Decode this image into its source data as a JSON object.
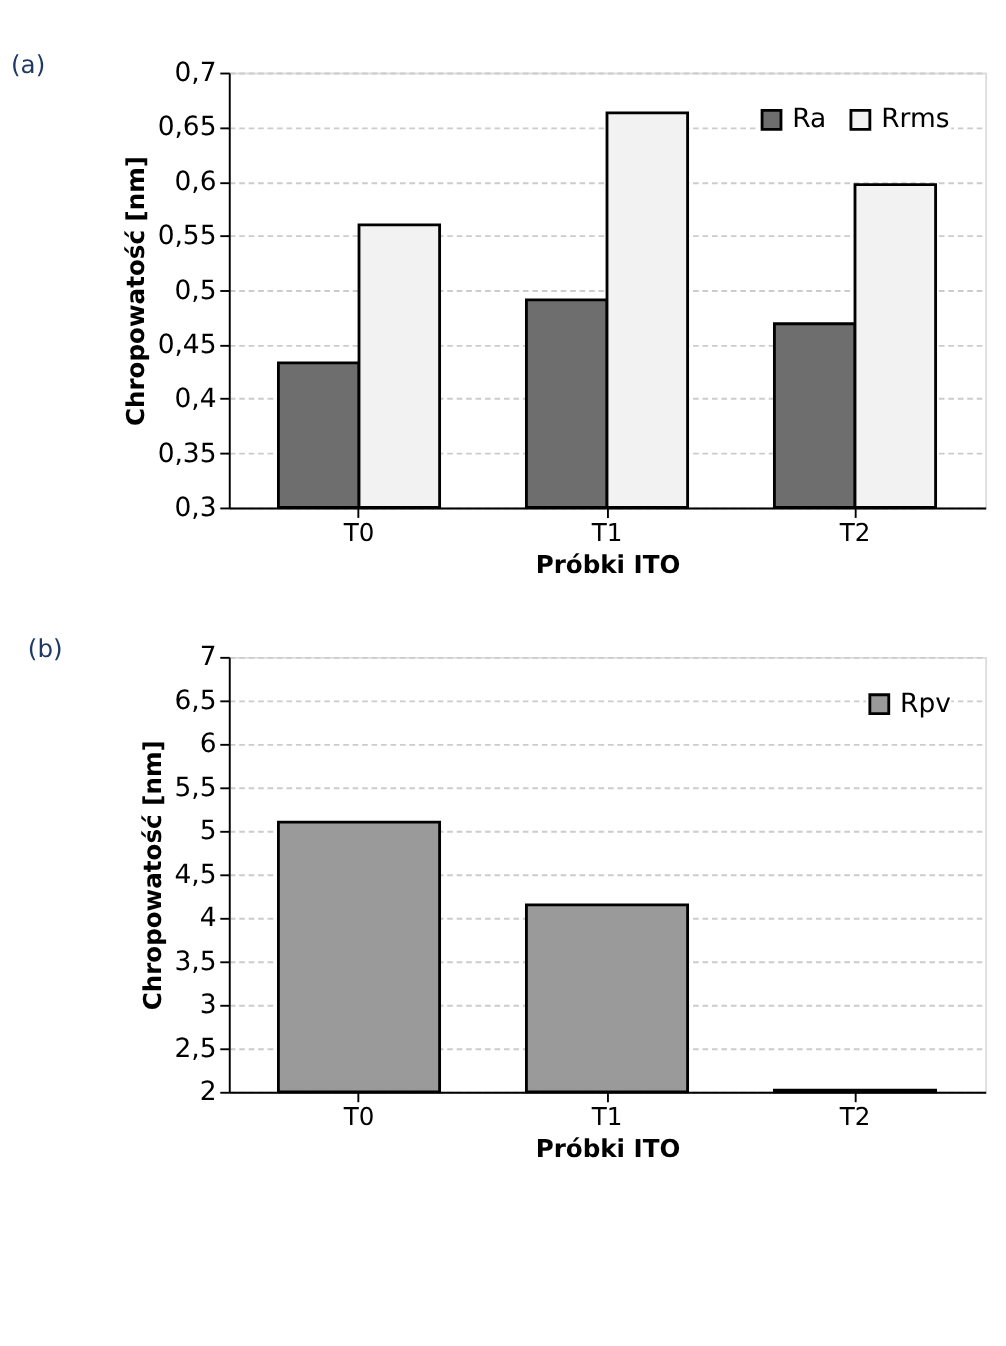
{
  "chart_data": [
    {
      "type": "bar",
      "title": "(a)",
      "xlabel": "Próbki ITO",
      "ylabel": "Chropowatość [nm]",
      "categories": [
        "T0",
        "T1",
        "T2"
      ],
      "series": [
        {
          "name": "Ra",
          "color": "#6e6e6e",
          "values": [
            0.433,
            0.491,
            0.469
          ]
        },
        {
          "name": "Rrms",
          "color": "#f2f2f2",
          "values": [
            0.56,
            0.663,
            0.597
          ]
        }
      ],
      "ylim": [
        0.3,
        0.7
      ],
      "yticks": [
        {
          "value": 0.3,
          "label": "0,3"
        },
        {
          "value": 0.35,
          "label": "0,35"
        },
        {
          "value": 0.4,
          "label": "0,4"
        },
        {
          "value": 0.45,
          "label": "0,45"
        },
        {
          "value": 0.5,
          "label": "0,5"
        },
        {
          "value": 0.55,
          "label": "0,55"
        },
        {
          "value": 0.6,
          "label": "0,6"
        },
        {
          "value": 0.65,
          "label": "0,65"
        },
        {
          "value": 0.7,
          "label": "0,7"
        }
      ],
      "grid": "y",
      "legend": "top right"
    },
    {
      "type": "bar",
      "title": "(b)",
      "xlabel": "Próbki ITO",
      "ylabel": "Chropowatość [nm]",
      "categories": [
        "T0",
        "T1",
        "T2"
      ],
      "series": [
        {
          "name": "Rpv",
          "color": "#9a9a9a",
          "values": [
            5.1,
            4.15,
            2.02
          ]
        }
      ],
      "ylim": [
        2,
        7
      ],
      "yticks": [
        2,
        {
          "value": 2.5,
          "label": "2,5"
        },
        3,
        {
          "value": 3.5,
          "label": "3,5"
        },
        4,
        {
          "value": 4.5,
          "label": "4,5"
        },
        5,
        {
          "value": 5.5,
          "label": "5,5"
        },
        6,
        {
          "value": 6.5,
          "label": "6,5"
        },
        7
      ],
      "grid": "y",
      "legend": "top right"
    }
  ]
}
